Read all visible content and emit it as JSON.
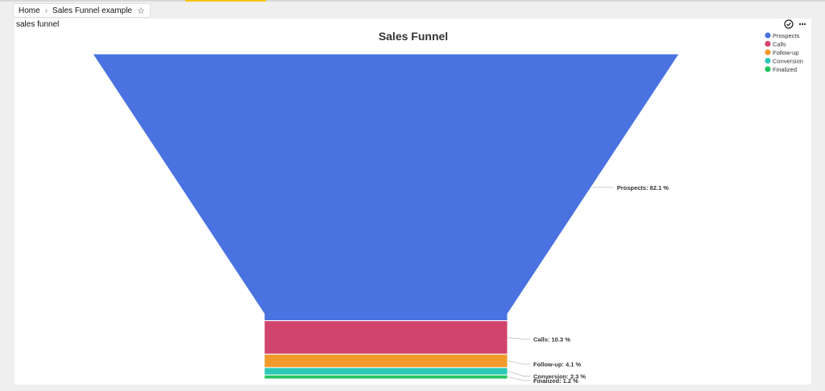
{
  "breadcrumb": {
    "home": "Home",
    "separator": "›",
    "current": "Sales Funnel example"
  },
  "panel": {
    "title": "sales funnel"
  },
  "icons": {
    "favorite": "star-icon",
    "check": "check-circle-icon",
    "menu": "more-icon"
  },
  "chart_data": {
    "type": "funnel",
    "title": "Sales Funnel",
    "legend_position": "top-right",
    "stages": [
      {
        "name": "Prospects",
        "percent": 82.1,
        "label": "Prospects: 82.1 %",
        "color": "#4a72e0"
      },
      {
        "name": "Calls",
        "percent": 10.3,
        "label": "Calls: 10.3 %",
        "color": "#d1446b"
      },
      {
        "name": "Follow-up",
        "percent": 4.1,
        "label": "Follow-up: 4.1 %",
        "color": "#f09a2b"
      },
      {
        "name": "Conversion",
        "percent": 2.3,
        "label": "Conversion: 2.3 %",
        "color": "#2ec8b8"
      },
      {
        "name": "Finalized",
        "percent": 1.2,
        "label": "Finalized: 1.2 %",
        "color": "#22c55e"
      }
    ]
  }
}
